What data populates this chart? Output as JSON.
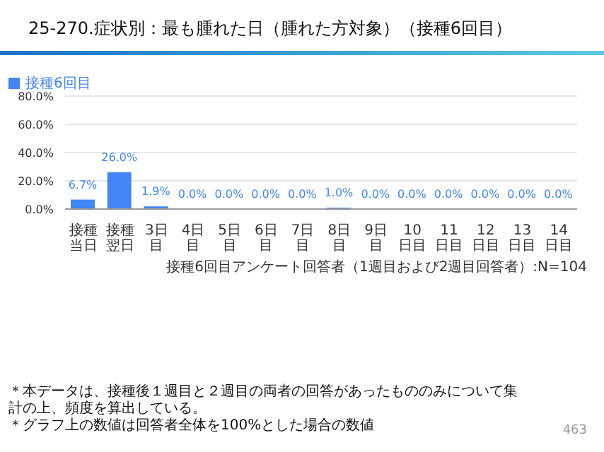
{
  "chart_data": {
    "type": "bar",
    "title": "25-270.症状別：最も腫れた日（腫れた方対象）（接種6回目）",
    "categories": [
      "接種当日",
      "接種翌日",
      "3日目",
      "4日目",
      "5日目",
      "6日目",
      "7日目",
      "8日目",
      "9日目",
      "10日目",
      "11日目",
      "12日目",
      "13日目",
      "14日目"
    ],
    "series": [
      {
        "name": "接種6回目",
        "color": "#4285f4",
        "values": [
          6.7,
          26.0,
          1.9,
          0,
          0,
          0,
          0,
          1.0,
          0,
          0,
          0,
          0,
          0,
          0
        ],
        "value_labels": [
          "6.7%",
          "26.0%",
          "1.9%",
          "0.0%",
          "0.0%",
          "0.0%",
          "0.0%",
          "1.0%",
          "0.0%",
          "0.0%",
          "0.0%",
          "0.0%",
          "0.0%",
          "0.0%"
        ]
      }
    ],
    "ylim": [
      0,
      80
    ],
    "yticks": [
      {
        "value": 0,
        "label": "0.0%"
      },
      {
        "value": 20,
        "label": "20.0%"
      },
      {
        "value": 40,
        "label": "40.0%"
      },
      {
        "value": 60,
        "label": "60.0%"
      },
      {
        "value": 80,
        "label": "80.0%"
      }
    ],
    "grid": "y",
    "legend": "top left",
    "annotations": [
      "接種6回目アンケート回答者（1週目および2週目回答者）:N=104",
      "＊本データは、接種後１週目と２週目の両者の回答があったもののみについて集計の上、頻度を算出している。",
      "＊グラフ上の数値は回答者全体を100%とした場合の数値",
      "463"
    ]
  }
}
